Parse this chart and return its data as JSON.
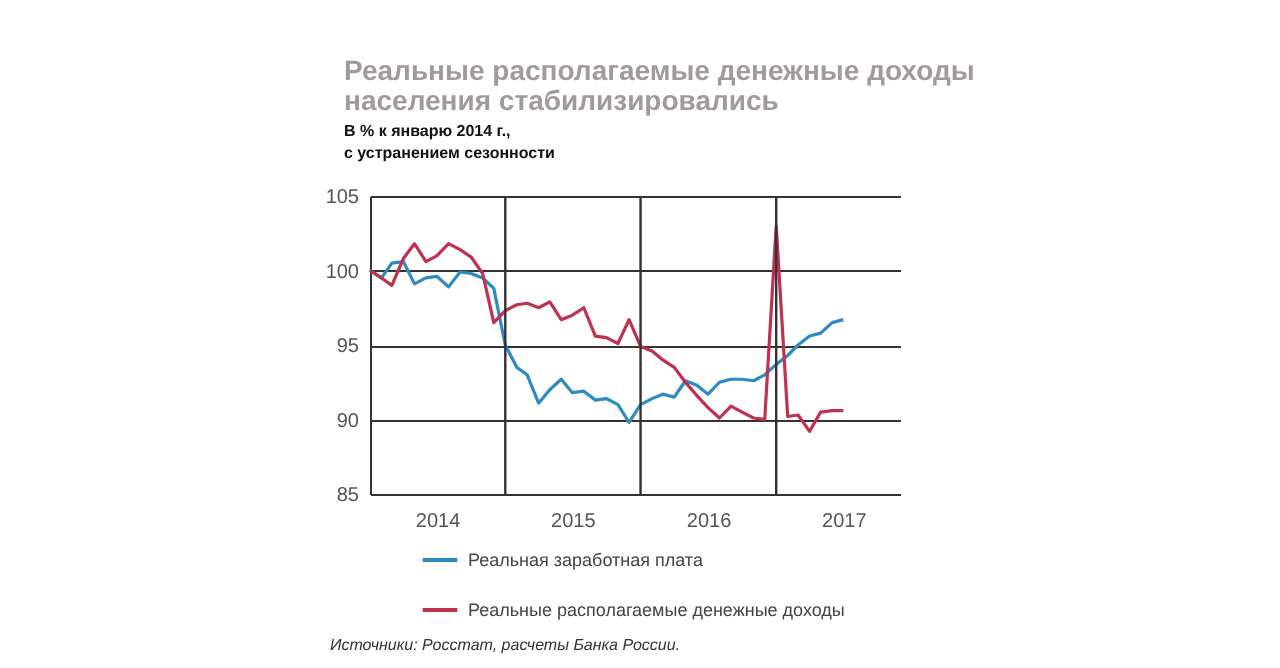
{
  "chart_data": {
    "type": "line",
    "title": "Реальные располагаемые денежные доходы населения стабилизировались",
    "subtitle": "В % к январю 2014 г., с устранением сезонности",
    "x": [
      "2014-01",
      "2014-02",
      "2014-03",
      "2014-04",
      "2014-05",
      "2014-06",
      "2014-07",
      "2014-08",
      "2014-09",
      "2014-10",
      "2014-11",
      "2014-12",
      "2015-01",
      "2015-02",
      "2015-03",
      "2015-04",
      "2015-05",
      "2015-06",
      "2015-07",
      "2015-08",
      "2015-09",
      "2015-10",
      "2015-11",
      "2015-12",
      "2016-01",
      "2016-02",
      "2016-03",
      "2016-04",
      "2016-05",
      "2016-06",
      "2016-07",
      "2016-08",
      "2016-09",
      "2016-10",
      "2016-11",
      "2016-12",
      "2017-01",
      "2017-02",
      "2017-03",
      "2017-04",
      "2017-05",
      "2017-06",
      "2017-07"
    ],
    "series": [
      {
        "name": "Реальная заработная плата",
        "color": "#2e8bc0",
        "values": [
          100,
          99.5,
          100.5,
          100.6,
          99.1,
          99.5,
          99.6,
          98.9,
          99.9,
          99.8,
          99.5,
          98.8,
          95.0,
          93.5,
          93.0,
          91.1,
          92.0,
          92.7,
          91.8,
          91.9,
          91.3,
          91.4,
          91.0,
          89.8,
          91.0,
          91.4,
          91.7,
          91.5,
          92.6,
          92.3,
          91.7,
          92.5,
          92.7,
          92.7,
          92.6,
          93.0,
          93.7,
          94.3,
          95.0,
          95.6,
          95.8,
          96.5,
          96.7
        ]
      },
      {
        "name": "Реальные располагаемые денежные доходы",
        "color": "#c0304f",
        "values": [
          100,
          99.5,
          99.0,
          100.8,
          101.8,
          100.6,
          101.0,
          101.8,
          101.4,
          100.9,
          99.8,
          96.5,
          97.3,
          97.7,
          97.8,
          97.5,
          97.9,
          96.7,
          97.0,
          97.5,
          95.6,
          95.5,
          95.1,
          96.7,
          94.9,
          94.6,
          94.0,
          93.5,
          92.5,
          91.6,
          90.8,
          90.1,
          90.9,
          90.5,
          90.1,
          90.0,
          103.0,
          90.2,
          90.3,
          89.2,
          90.5,
          90.6,
          90.6
        ]
      }
    ],
    "xlim": [
      "2014-01",
      "2017-12"
    ],
    "xticks": [
      {
        "value": "2014-07",
        "label": "2014"
      },
      {
        "value": "2015-07",
        "label": "2015"
      },
      {
        "value": "2016-07",
        "label": "2016"
      },
      {
        "value": "2017-07",
        "label": "2017"
      }
    ],
    "ylim": [
      85,
      105
    ],
    "yticks": [
      85,
      90,
      95,
      100,
      105
    ],
    "grid": "y",
    "ref_lines": [
      {
        "axis": "x",
        "value": "2015-01",
        "color": "#333333"
      },
      {
        "axis": "x",
        "value": "2016-01",
        "color": "#333333"
      },
      {
        "axis": "x",
        "value": "2017-01",
        "color": "#333333"
      }
    ],
    "legend": "bottom",
    "marker": "none",
    "line_style": "solid",
    "annotations": [
      "Источники: Росстат, расчеты Банка России."
    ]
  }
}
